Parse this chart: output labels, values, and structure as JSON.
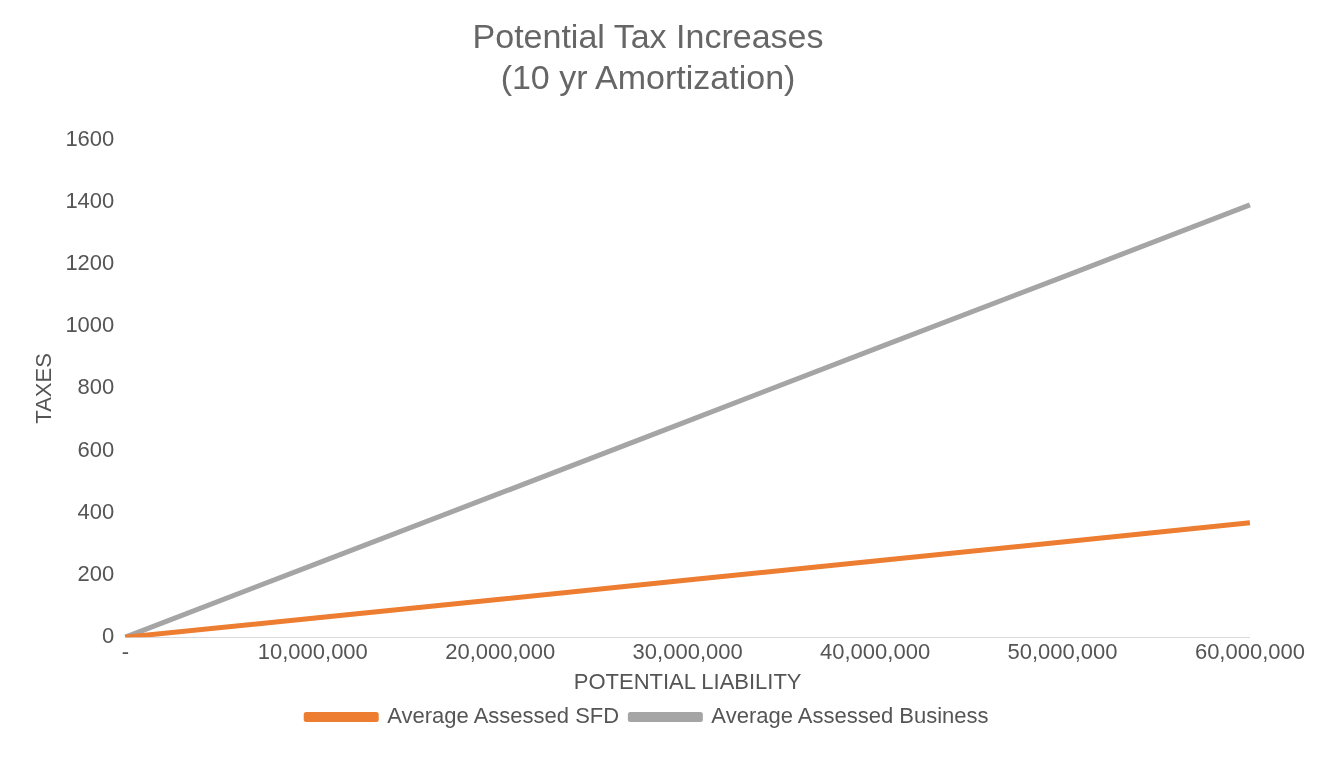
{
  "chart_data": {
    "type": "line",
    "title": [
      "Potential Tax Increases",
      "(10 yr Amortization)"
    ],
    "xlabel": "POTENTIAL LIABILITY",
    "ylabel": "TAXES",
    "categories": [
      "-",
      "10,000,000",
      "20,000,000",
      "30,000,000",
      "40,000,000",
      "50,000,000",
      "60,000,000"
    ],
    "series": [
      {
        "name": "Average Assessed SFD",
        "color": "#ed7d31",
        "values": [
          0,
          61,
          122,
          184,
          245,
          306,
          368
        ]
      },
      {
        "name": "Average Assessed Business",
        "color": "#a5a5a5",
        "values": [
          0,
          232,
          463,
          695,
          927,
          1158,
          1390
        ]
      }
    ],
    "ylim": [
      0,
      1600
    ],
    "yticks": [
      0,
      200,
      400,
      600,
      800,
      1000,
      1200,
      1400,
      1600
    ],
    "grid": false,
    "legend": "bottom",
    "marker": "none",
    "line_style": "solid"
  }
}
